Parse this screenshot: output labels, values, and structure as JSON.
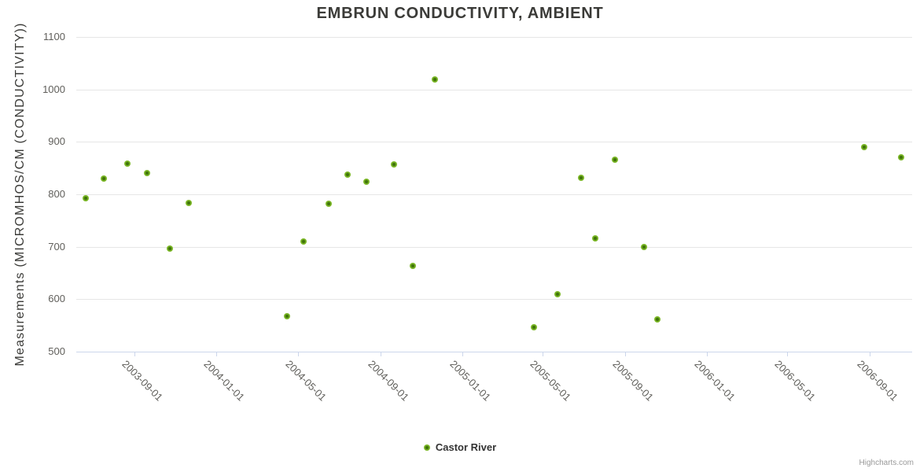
{
  "title": "EMBRUN CONDUCTIVITY, AMBIENT",
  "credits": "Highcharts.com",
  "legend": {
    "position": "bottom-center",
    "items": [
      {
        "label": "Castor River",
        "marker": "circle-icon"
      }
    ]
  },
  "colors": {
    "background": "#ffffff",
    "grid_line": "#e6e6e6",
    "axis_line": "#ccd6eb",
    "title_text": "#3b3b38",
    "axis_label_text": "#605f5b",
    "point_outer": "#7cb827",
    "point_inner": "#3f7309",
    "legend_text": "#333333",
    "credits_text": "#999999"
  },
  "chart_data": {
    "type": "scatter",
    "title": "EMBRUN CONDUCTIVITY, AMBIENT",
    "xlabel": "",
    "ylabel": "Measurements (MICROMHOS/CM (CONDUCTIVITY))",
    "grid": true,
    "legend_position": "bottom-center",
    "x_axis": {
      "type": "datetime",
      "min": "2003-06-06",
      "max": "2006-11-03",
      "tick_labels": [
        "2003-09-01",
        "2004-01-01",
        "2004-05-01",
        "2004-09-01",
        "2005-01-01",
        "2005-05-01",
        "2005-09-01",
        "2006-01-01",
        "2006-05-01",
        "2006-09-01"
      ]
    },
    "y_axis": {
      "min": 500,
      "max": 1100,
      "tick_interval": 100,
      "ticks": [
        500,
        600,
        700,
        800,
        900,
        1000,
        1100
      ]
    },
    "series": [
      {
        "name": "Castor River",
        "color": "#7cb827",
        "points": [
          {
            "date": "2003-06-20",
            "value": 793
          },
          {
            "date": "2003-07-17",
            "value": 830
          },
          {
            "date": "2003-08-21",
            "value": 858
          },
          {
            "date": "2003-09-19",
            "value": 841
          },
          {
            "date": "2003-10-23",
            "value": 697
          },
          {
            "date": "2003-11-20",
            "value": 784
          },
          {
            "date": "2004-04-15",
            "value": 567
          },
          {
            "date": "2004-05-10",
            "value": 710
          },
          {
            "date": "2004-06-16",
            "value": 782
          },
          {
            "date": "2004-07-14",
            "value": 838
          },
          {
            "date": "2004-08-11",
            "value": 824
          },
          {
            "date": "2004-09-21",
            "value": 857
          },
          {
            "date": "2004-10-20",
            "value": 663
          },
          {
            "date": "2004-11-22",
            "value": 1019
          },
          {
            "date": "2005-04-18",
            "value": 547
          },
          {
            "date": "2005-05-23",
            "value": 609
          },
          {
            "date": "2005-06-28",
            "value": 832
          },
          {
            "date": "2005-07-19",
            "value": 716
          },
          {
            "date": "2005-08-17",
            "value": 866
          },
          {
            "date": "2005-09-29",
            "value": 700
          },
          {
            "date": "2005-10-19",
            "value": 562
          },
          {
            "date": "2006-08-23",
            "value": 890
          },
          {
            "date": "2006-10-18",
            "value": 870
          }
        ]
      }
    ]
  }
}
